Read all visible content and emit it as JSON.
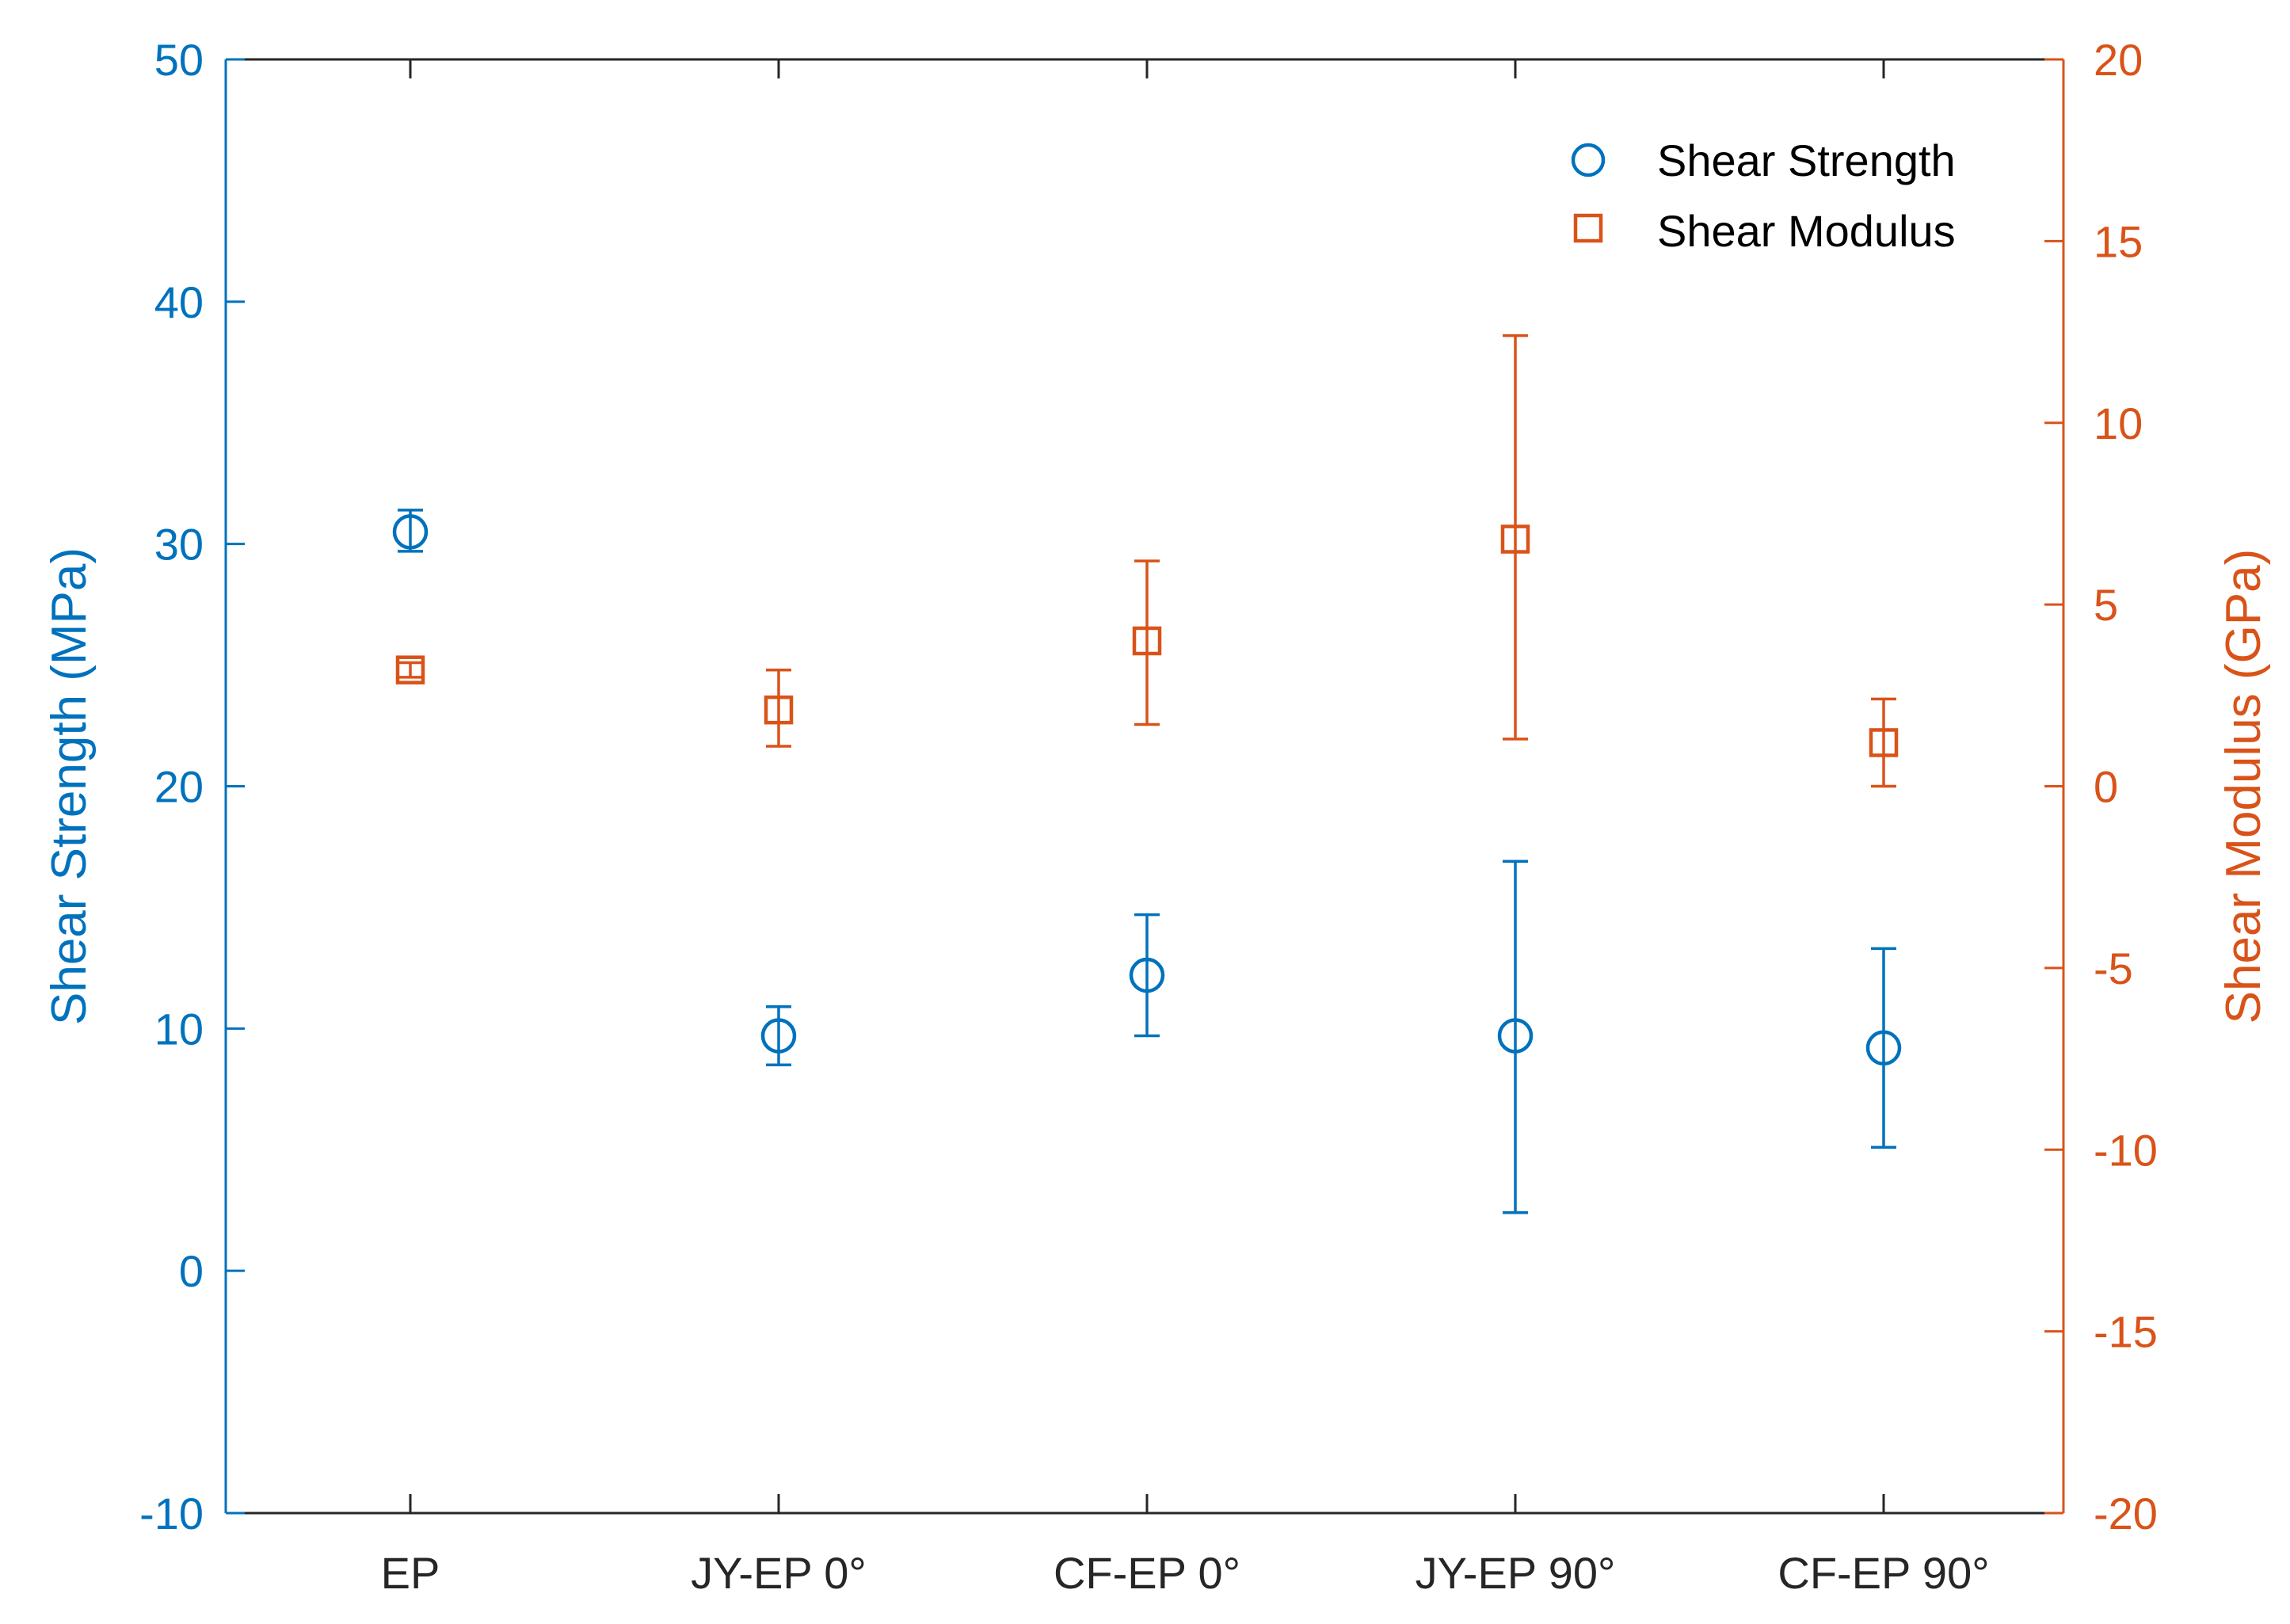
{
  "chart_data": {
    "type": "scatter",
    "categories": [
      "EP",
      "JY-EP 0°",
      "CF-EP 0°",
      "JY-EP 90°",
      "CF-EP 90°"
    ],
    "series": [
      {
        "name": "Shear Strength",
        "axis": "left",
        "marker": "circle",
        "color": "#0072BD",
        "values": [
          30.5,
          9.7,
          12.2,
          9.7,
          9.2
        ],
        "err_low": [
          0.8,
          1.2,
          2.5,
          7.3,
          4.1
        ],
        "err_high": [
          0.9,
          1.2,
          2.5,
          7.2,
          4.1
        ]
      },
      {
        "name": "Shear Modulus",
        "axis": "right",
        "marker": "square",
        "color": "#D95319",
        "values": [
          3.2,
          2.1,
          4.0,
          6.8,
          1.2
        ],
        "err_low": [
          0.2,
          1.0,
          2.3,
          5.5,
          1.2
        ],
        "err_high": [
          0.2,
          1.1,
          2.2,
          5.6,
          1.2
        ]
      }
    ],
    "ylabel_left": "Shear Strength (MPa)",
    "ylabel_right": "Shear Modulus (GPa)",
    "ylim_left": [
      -10,
      50
    ],
    "ylim_right": [
      -20,
      20
    ],
    "yticks_left": [
      -10,
      0,
      10,
      20,
      30,
      40,
      50
    ],
    "yticks_right": [
      -20,
      -15,
      -10,
      -5,
      0,
      5,
      10,
      15,
      20
    ],
    "grid": false,
    "legend": "top-right",
    "axis_color_left": "#0072BD",
    "axis_color_right": "#D95319",
    "axis_color_x": "#262626"
  }
}
